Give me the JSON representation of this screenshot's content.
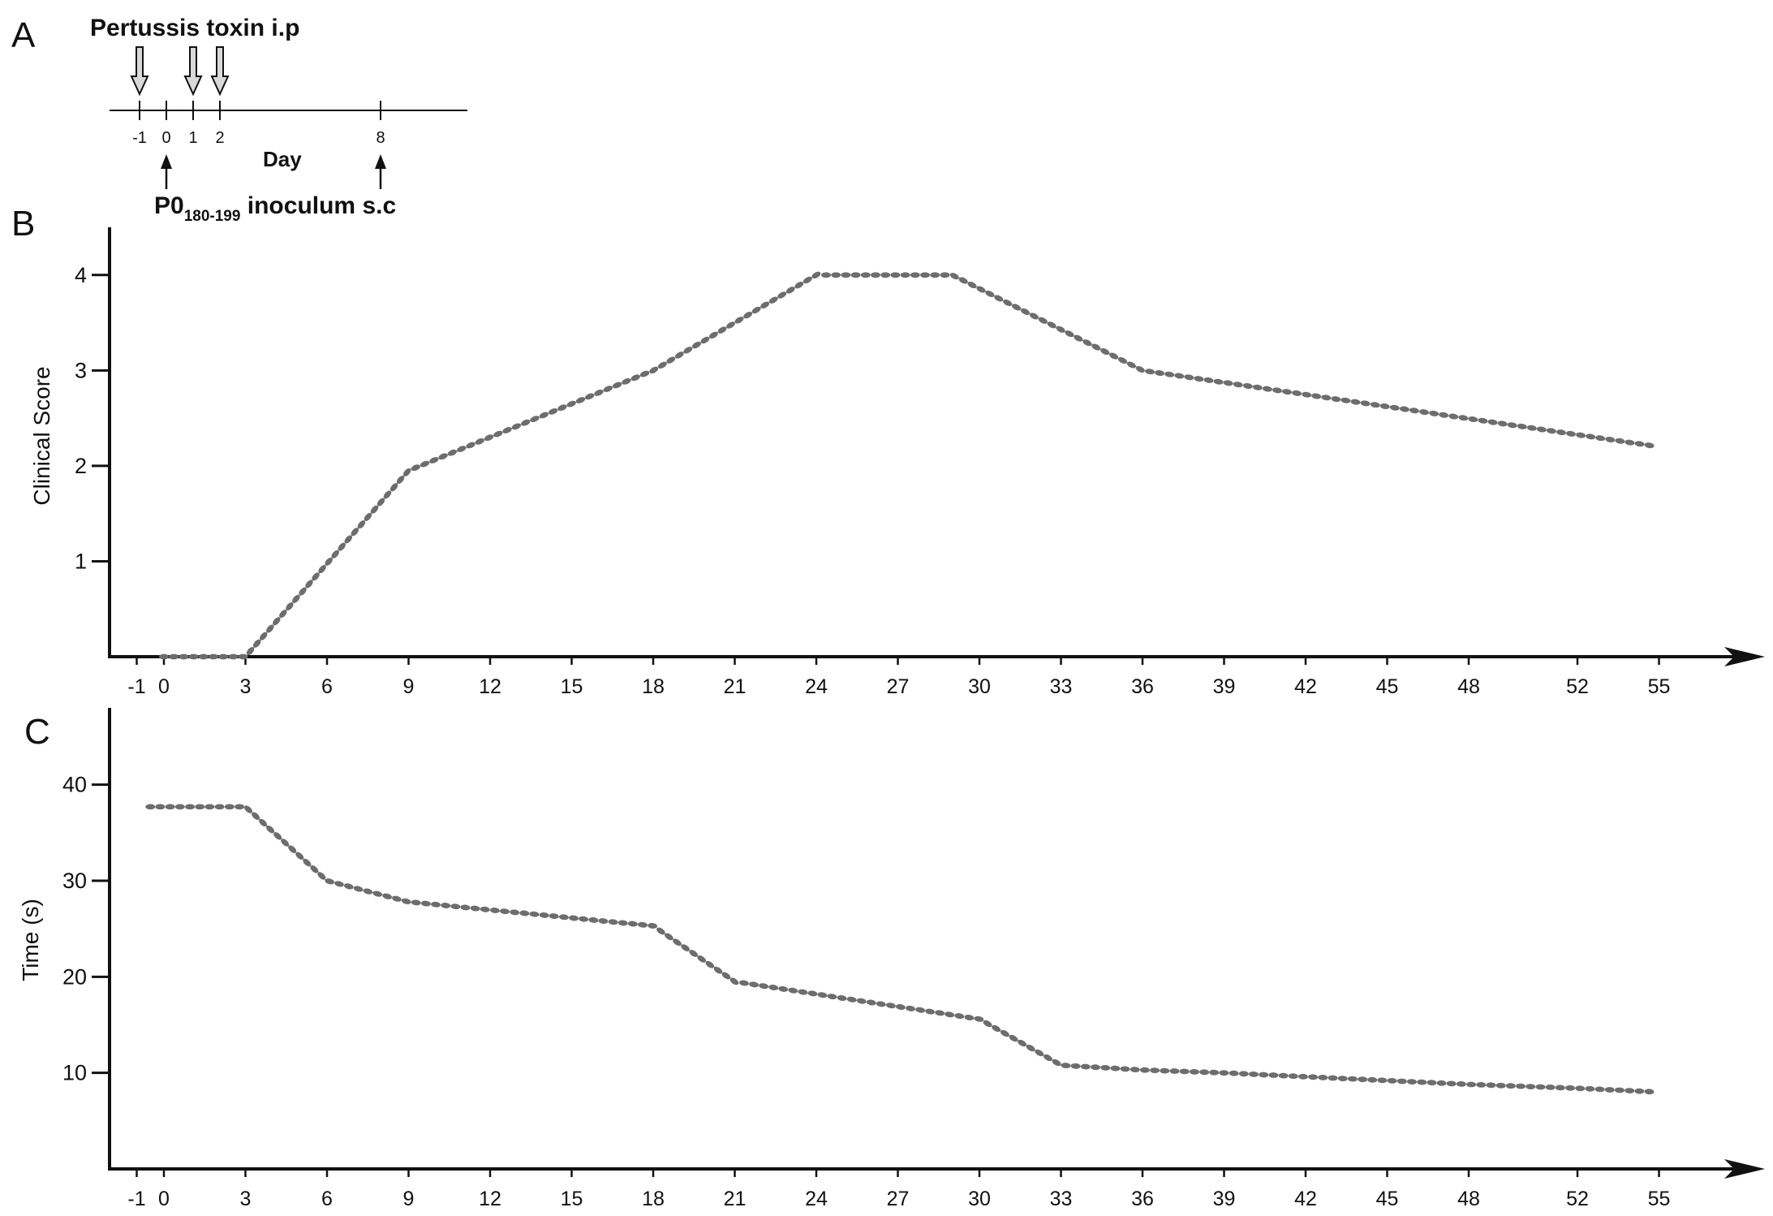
{
  "timeline": {
    "panel_letter": "A",
    "toxin_label": "Pertussis toxin i.p",
    "axis_label": "Day",
    "ticks": [
      -1,
      0,
      1,
      2,
      8
    ],
    "toxin_days": [
      -1,
      1,
      2
    ],
    "inoculum_days": [
      0,
      8
    ],
    "inoculum_label_main": "P0",
    "inoculum_label_sub": "180-199",
    "inoculum_label_rest": " inoculum s.c"
  },
  "chart_data": [
    {
      "panel_letter": "B",
      "type": "scatter",
      "ylabel": "Clinical Score",
      "xlim": [
        -2,
        56
      ],
      "ylim": [
        0,
        4.5
      ],
      "xticks": [
        -1,
        0,
        3,
        6,
        9,
        12,
        15,
        18,
        21,
        24,
        27,
        30,
        33,
        36,
        39,
        42,
        45,
        48,
        52,
        55
      ],
      "yticks": [
        1,
        2,
        3,
        4
      ],
      "marker_color": "#6d6d6d",
      "series": [
        {
          "x": [
            0,
            3,
            9,
            18,
            24,
            29,
            36,
            55
          ],
          "y": [
            0,
            0,
            1.95,
            3.0,
            4.0,
            4.0,
            3.0,
            2.2
          ]
        }
      ]
    },
    {
      "panel_letter": "C",
      "type": "scatter",
      "ylabel": "Time (s)",
      "xlim": [
        -2,
        56
      ],
      "ylim": [
        0,
        48
      ],
      "xticks": [
        -1,
        0,
        3,
        6,
        9,
        12,
        15,
        18,
        21,
        24,
        27,
        30,
        33,
        36,
        39,
        42,
        45,
        48,
        52,
        55
      ],
      "yticks": [
        10,
        20,
        30,
        40
      ],
      "marker_color": "#6d6d6d",
      "series": [
        {
          "x": [
            -0.5,
            3,
            6,
            9,
            18,
            21,
            30,
            33,
            36,
            39,
            42,
            45,
            48,
            52,
            55
          ],
          "y": [
            37.7,
            37.7,
            30,
            27.8,
            25.3,
            19.5,
            15.6,
            10.8,
            10.3,
            10,
            9.6,
            9.2,
            8.8,
            8.4,
            8
          ]
        }
      ]
    }
  ]
}
